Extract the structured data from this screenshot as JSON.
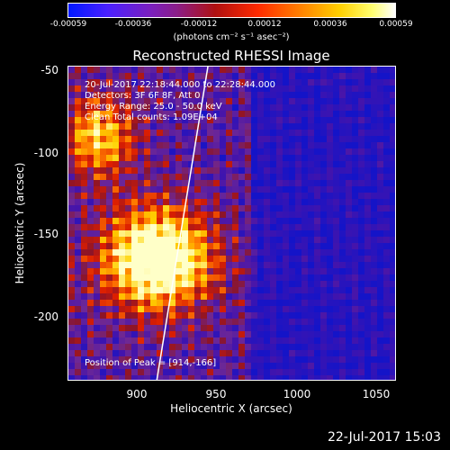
{
  "colorbar": {
    "ticks": [
      "-0.00059",
      "-0.00036",
      "-0.00012",
      "0.00012",
      "0.00036",
      "0.00059"
    ],
    "label": "(photons cm⁻² s⁻¹ asec⁻²)"
  },
  "plot": {
    "title": "Reconstructed RHESSI Image",
    "info": [
      "20-Jul-2017 22:18:44.000 to 22:28:44.000",
      "Detectors: 3F 6F 8F, Att 0",
      "Energy Range: 25.0 - 50.0 keV",
      "Clean     Total counts: 1.09E+04"
    ],
    "peak": "Position of Peak = [914,-166]",
    "xlabel": "Heliocentric X (arcsec)",
    "ylabel": "Heliocentric Y (arcsec)",
    "xticks": [
      "900",
      "950",
      "1000",
      "1050"
    ],
    "yticks": [
      "-50",
      "-100",
      "-150",
      "-200"
    ]
  },
  "timestamp": "22-Jul-2017 15:03"
}
